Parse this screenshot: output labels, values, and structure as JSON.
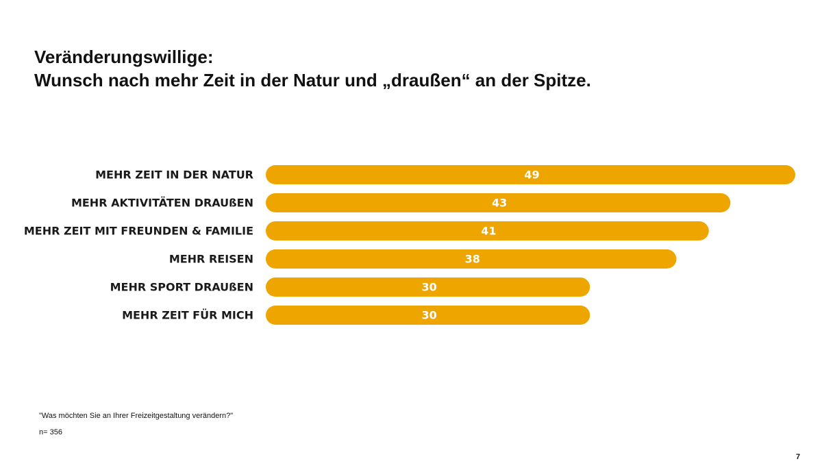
{
  "slide": {
    "title_line1": "Veränderungswillige:",
    "title_line2": "Wunsch nach mehr Zeit in der Natur und „draußen“ an der Spitze.",
    "footnote_question": "\"Was möchten Sie an Ihrer Freizeitgestaltung verändern?\"",
    "footnote_n": "n= 356",
    "page_number": "7"
  },
  "chart_data": {
    "type": "bar",
    "orientation": "horizontal",
    "categories": [
      "MEHR ZEIT IN DER NATUR",
      "MEHR AKTIVITÄTEN DRAUßEN",
      "MEHR ZEIT MIT FREUNDEN & FAMILIE",
      "MEHR REISEN",
      "MEHR SPORT DRAUßEN",
      "MEHR ZEIT FÜR MICH"
    ],
    "values": [
      49,
      43,
      41,
      38,
      30,
      30
    ],
    "title": "",
    "xlabel": "",
    "ylabel": "",
    "xlim": [
      0,
      49
    ],
    "grid": false,
    "legend": "none",
    "bar_color": "#EFA500",
    "value_label_color": "#FFFFFF"
  }
}
